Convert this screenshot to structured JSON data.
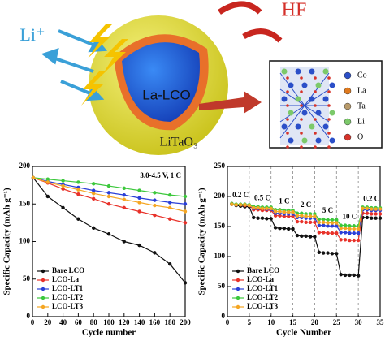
{
  "illustration": {
    "ion": "Li⁺",
    "gas": "HF",
    "core": "La-LCO",
    "shell": "LiTaO₃",
    "elements": [
      "Co",
      "La",
      "Ta",
      "Li",
      "O"
    ],
    "element_colors": [
      "#2b4fc8",
      "#e07a1e",
      "#b89a6a",
      "#7cc96a",
      "#d6332a"
    ]
  },
  "chart_data": [
    {
      "type": "line",
      "xlabel": "Cycle number",
      "ylabel": "Specific Capacity (mAh g⁻¹)",
      "annotation": "3.0-4.5 V, 1 C",
      "x": [
        1,
        20,
        40,
        60,
        80,
        100,
        120,
        140,
        160,
        180,
        200
      ],
      "xlim": [
        0,
        200
      ],
      "xticks": [
        0,
        20,
        40,
        60,
        80,
        100,
        120,
        140,
        160,
        180,
        200
      ],
      "ylim": [
        0,
        200
      ],
      "yticks": [
        0,
        50,
        100,
        150,
        200
      ],
      "legend": "lower left",
      "series": [
        {
          "name": "Bare LCO",
          "color": "#111111",
          "values": [
            185,
            160,
            145,
            130,
            118,
            110,
            100,
            95,
            85,
            70,
            45
          ]
        },
        {
          "name": "LCO-La",
          "color": "#e8322a",
          "values": [
            185,
            178,
            170,
            163,
            157,
            150,
            145,
            140,
            135,
            130,
            125
          ]
        },
        {
          "name": "LCO-LT1",
          "color": "#2a3fd8",
          "values": [
            185,
            180,
            176,
            172,
            168,
            165,
            162,
            158,
            155,
            152,
            150
          ]
        },
        {
          "name": "LCO-LT2",
          "color": "#3cc83c",
          "values": [
            185,
            183,
            181,
            179,
            177,
            174,
            171,
            168,
            165,
            162,
            160
          ]
        },
        {
          "name": "LCO-LT3",
          "color": "#f5a623",
          "values": [
            185,
            179,
            174,
            169,
            164,
            160,
            156,
            152,
            148,
            145,
            140
          ]
        }
      ]
    },
    {
      "type": "line",
      "xlabel": "Cycle Number",
      "ylabel": "Specific Capacity (mAh g⁻¹)",
      "segment_labels": [
        "0.2 C",
        "0.5 C",
        "1 C",
        "2 C",
        "5 C",
        "10 C",
        "0.2 C"
      ],
      "x": [
        1,
        2,
        3,
        4,
        5,
        6,
        7,
        8,
        9,
        10,
        11,
        12,
        13,
        14,
        15,
        16,
        17,
        18,
        19,
        20,
        21,
        22,
        23,
        24,
        25,
        26,
        27,
        28,
        29,
        30,
        31,
        32,
        33,
        34,
        35
      ],
      "xlim": [
        0,
        35
      ],
      "xticks": [
        0,
        5,
        10,
        15,
        20,
        25,
        30,
        35
      ],
      "ylim": [
        0,
        250
      ],
      "yticks": [
        0,
        50,
        100,
        150,
        200,
        250
      ],
      "legend": "lower left",
      "dashed_xgrid": true,
      "series": [
        {
          "name": "Bare LCO",
          "color": "#111111",
          "values": [
            188,
            185,
            184,
            183,
            183,
            165,
            164,
            164,
            163,
            163,
            148,
            147,
            147,
            146,
            146,
            135,
            134,
            134,
            133,
            133,
            107,
            106,
            106,
            105,
            105,
            70,
            69,
            69,
            69,
            68,
            165,
            165,
            164,
            164,
            164
          ]
        },
        {
          "name": "LCO-La",
          "color": "#e8322a",
          "values": [
            187,
            186,
            186,
            185,
            185,
            178,
            178,
            177,
            177,
            177,
            168,
            168,
            167,
            167,
            167,
            158,
            158,
            157,
            157,
            157,
            140,
            140,
            139,
            139,
            139,
            128,
            128,
            127,
            127,
            127,
            172,
            172,
            171,
            171,
            171
          ]
        },
        {
          "name": "LCO-LT1",
          "color": "#2a3fd8",
          "values": [
            187,
            186,
            186,
            186,
            185,
            180,
            180,
            180,
            179,
            179,
            172,
            172,
            171,
            171,
            171,
            165,
            165,
            164,
            164,
            164,
            152,
            152,
            151,
            151,
            151,
            140,
            140,
            139,
            139,
            139,
            178,
            178,
            177,
            177,
            177
          ]
        },
        {
          "name": "LCO-LT2",
          "color": "#3cc83c",
          "values": [
            188,
            187,
            187,
            187,
            186,
            183,
            183,
            182,
            182,
            182,
            178,
            178,
            177,
            177,
            177,
            172,
            172,
            171,
            171,
            171,
            162,
            162,
            161,
            161,
            161,
            152,
            152,
            151,
            151,
            151,
            182,
            182,
            181,
            181,
            181
          ]
        },
        {
          "name": "LCO-LT3",
          "color": "#f5a623",
          "values": [
            187,
            186,
            186,
            186,
            185,
            181,
            181,
            180,
            180,
            180,
            175,
            175,
            174,
            174,
            174,
            168,
            168,
            167,
            167,
            167,
            157,
            157,
            156,
            156,
            156,
            147,
            147,
            146,
            146,
            146,
            180,
            180,
            179,
            179,
            179
          ]
        }
      ]
    }
  ]
}
